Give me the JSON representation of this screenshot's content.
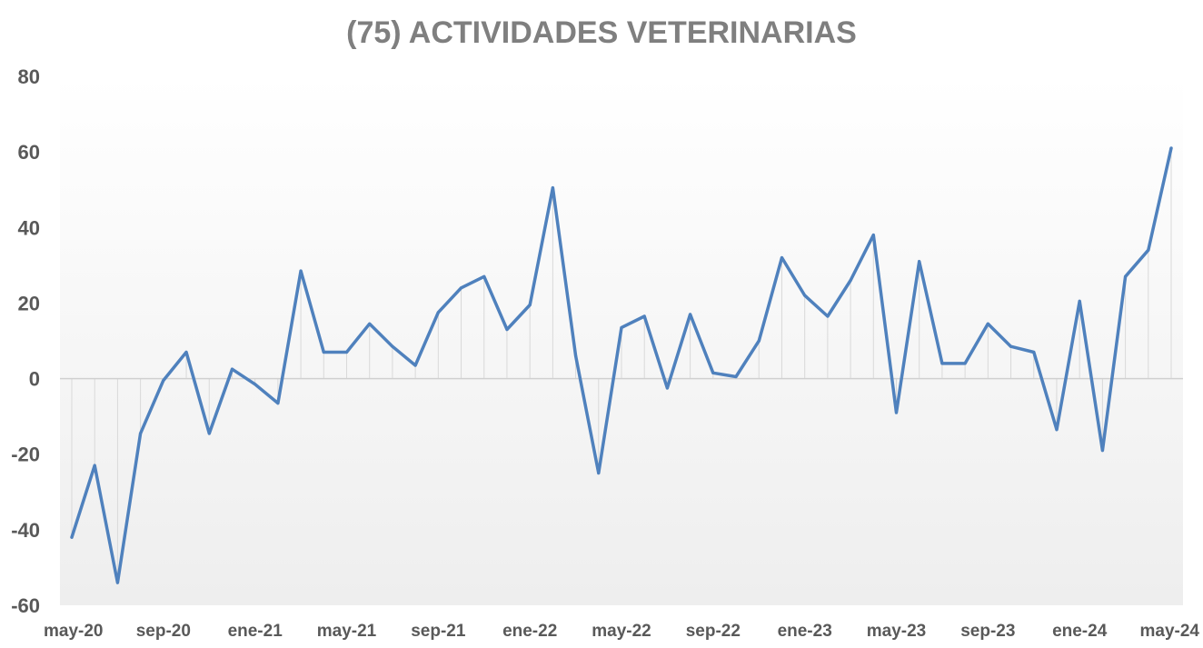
{
  "chart_data": {
    "type": "line",
    "title": "(75) ACTIVIDADES VETERINARIAS",
    "xlabel": "",
    "ylabel": "",
    "ylim": [
      -60,
      80
    ],
    "yticks": [
      "80",
      "60",
      "40",
      "20",
      "0",
      "-20",
      "-40",
      "-60"
    ],
    "ytick_values": [
      80,
      60,
      40,
      20,
      0,
      -20,
      -40,
      -60
    ],
    "x": [
      "may-20",
      "jun-20",
      "jul-20",
      "ago-20",
      "sep-20",
      "oct-20",
      "nov-20",
      "dic-20",
      "ene-21",
      "feb-21",
      "mar-21",
      "abr-21",
      "may-21",
      "jun-21",
      "jul-21",
      "ago-21",
      "sep-21",
      "oct-21",
      "nov-21",
      "dic-21",
      "ene-22",
      "feb-22",
      "mar-22",
      "abr-22",
      "may-22",
      "jun-22",
      "jul-22",
      "ago-22",
      "sep-22",
      "oct-22",
      "nov-22",
      "dic-22",
      "ene-23",
      "feb-23",
      "mar-23",
      "abr-23",
      "may-23",
      "jun-23",
      "jul-23",
      "ago-23",
      "sep-23",
      "oct-23",
      "nov-23",
      "dic-23",
      "ene-24",
      "feb-24",
      "mar-24",
      "abr-24",
      "may-24"
    ],
    "xtick_labels": [
      "may-20",
      "sep-20",
      "ene-21",
      "may-21",
      "sep-21",
      "ene-22",
      "may-22",
      "sep-22",
      "ene-23",
      "may-23",
      "sep-23",
      "ene-24",
      "may-24"
    ],
    "series": [
      {
        "values": [
          -42,
          -23,
          -54,
          -14.5,
          -0.5,
          7,
          -14.5,
          2.5,
          -1.5,
          -6.5,
          28.5,
          7,
          7,
          14.5,
          8.5,
          3.5,
          17.5,
          24,
          27,
          13,
          19.5,
          50.5,
          6,
          -25,
          13.5,
          16.5,
          -2.5,
          17,
          1.5,
          0.5,
          10,
          32,
          22,
          16.5,
          26,
          38,
          -9,
          31,
          4,
          4,
          14.5,
          8.5,
          7,
          -13.5,
          20.5,
          -19,
          27,
          34,
          61
        ],
        "color": "#4f81bd"
      }
    ],
    "grid": false,
    "drop_lines": true,
    "legend": "none"
  }
}
